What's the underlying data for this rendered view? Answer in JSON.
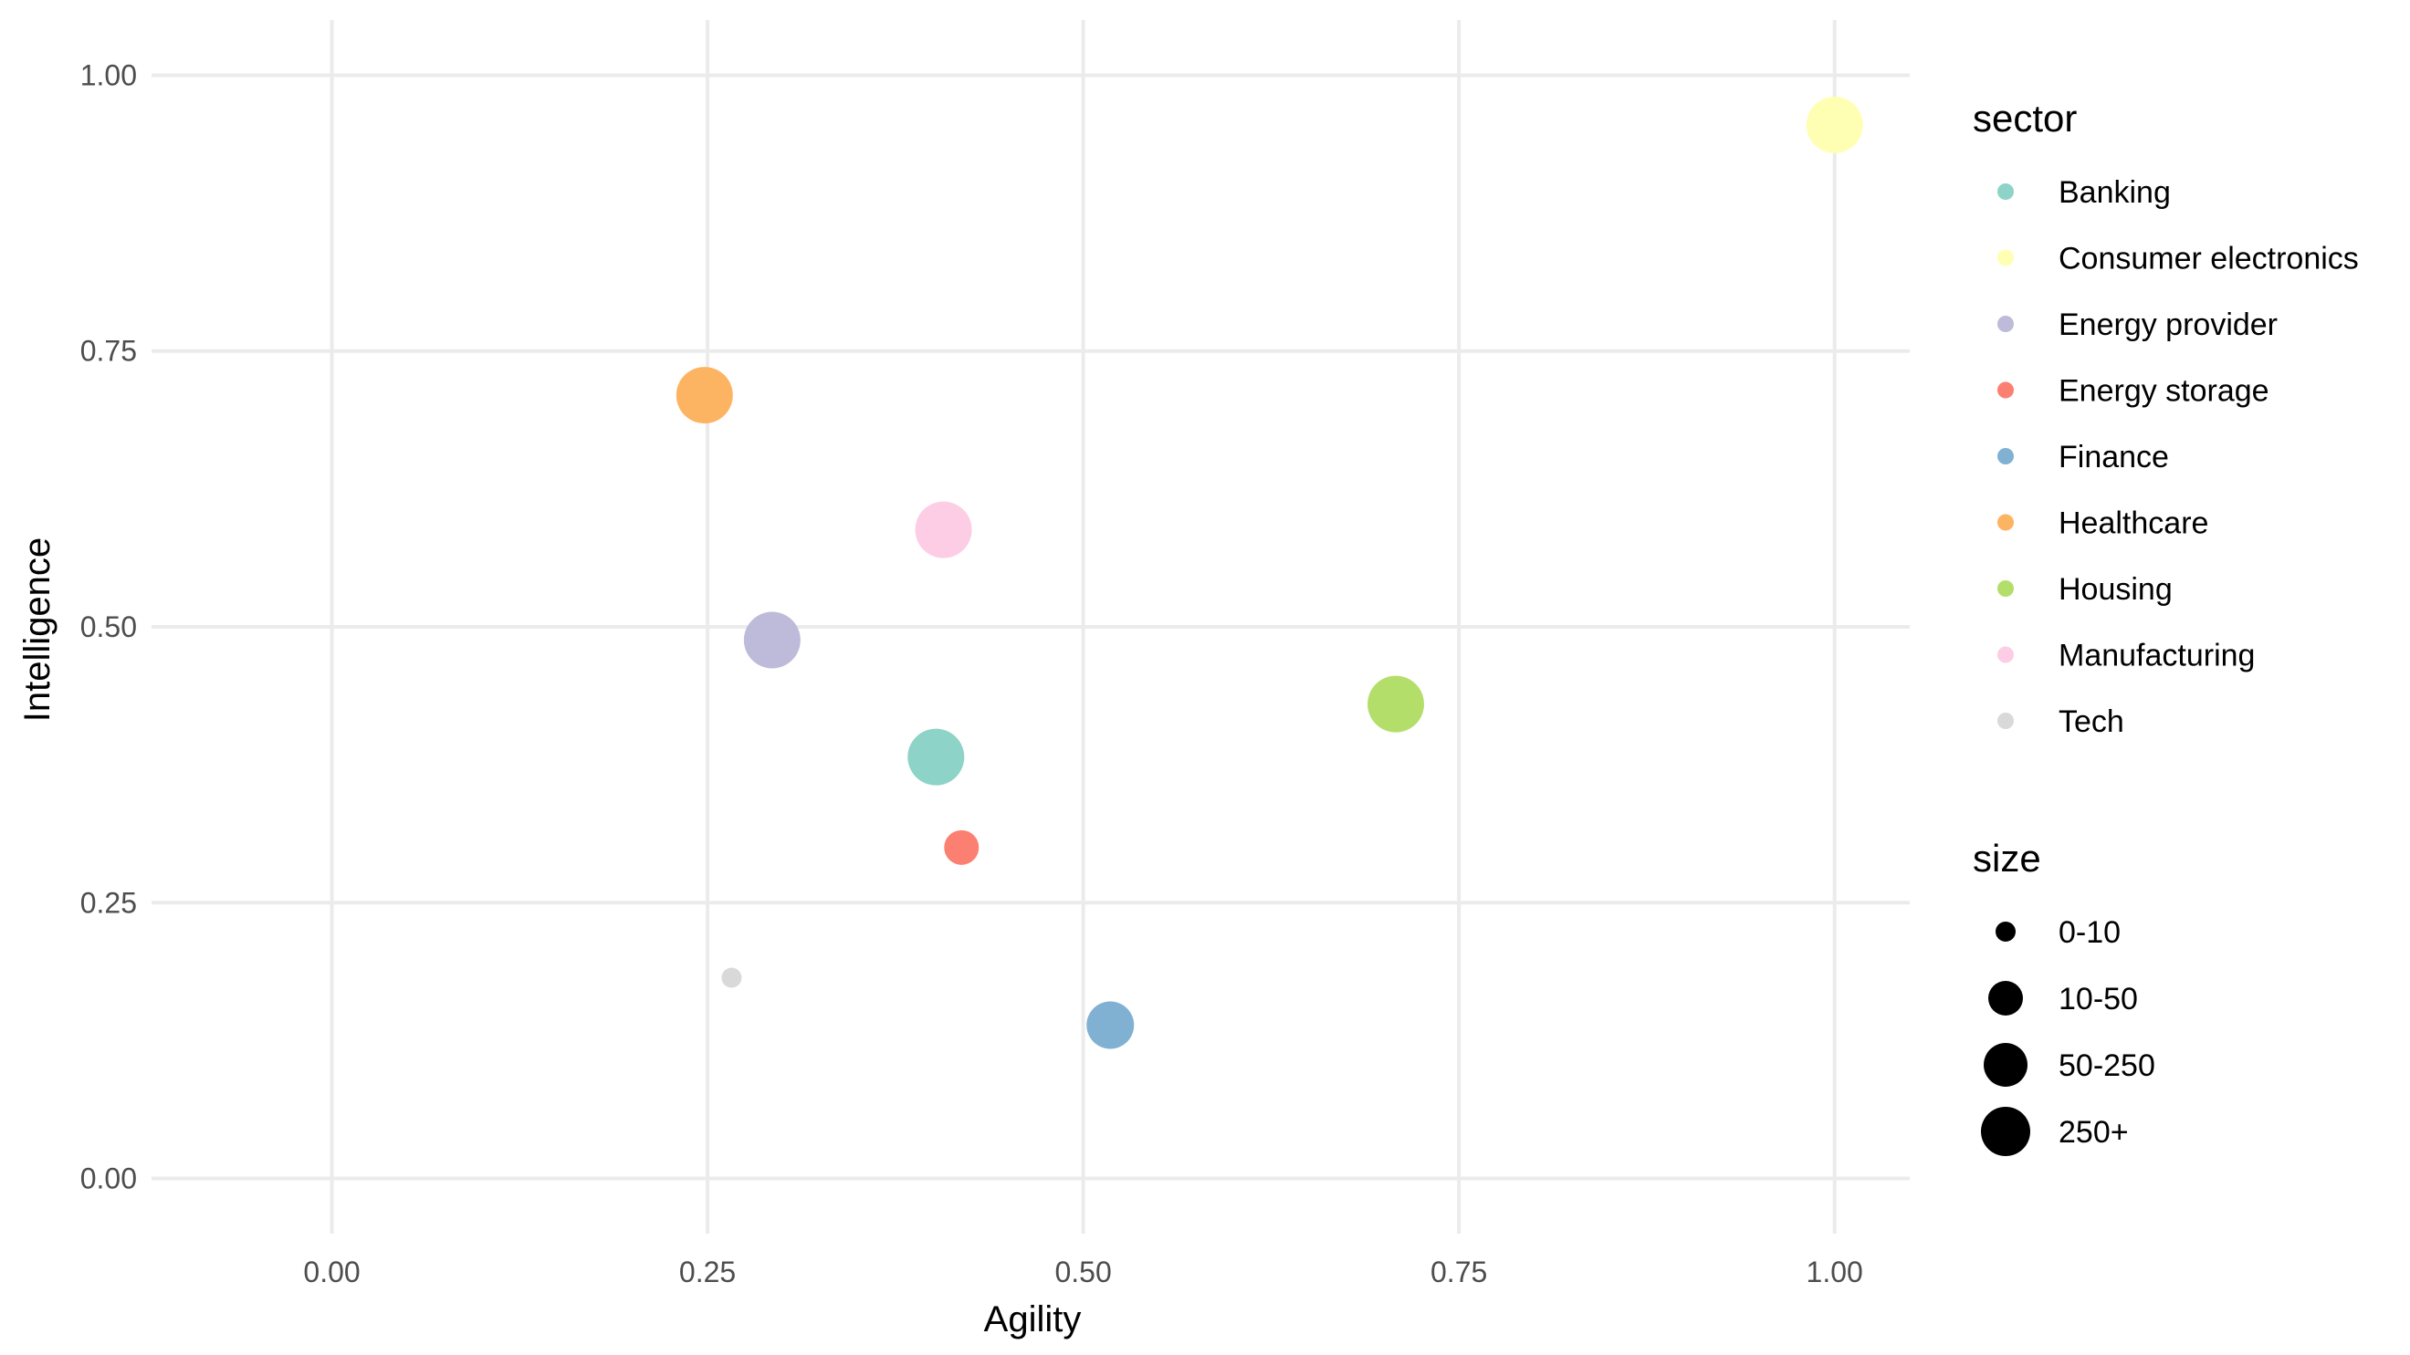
{
  "chart_data": {
    "type": "scatter",
    "title": "",
    "xlabel": "Agility",
    "ylabel": "Intelligence",
    "xlim": [
      -0.12,
      1.05
    ],
    "ylim": [
      -0.05,
      1.05
    ],
    "x_ticks": [
      0.0,
      0.25,
      0.5,
      0.75,
      1.0
    ],
    "y_ticks": [
      0.0,
      0.25,
      0.5,
      0.75,
      1.0
    ],
    "x_tick_labels": [
      "0.00",
      "0.25",
      "0.50",
      "0.75",
      "1.00"
    ],
    "y_tick_labels": [
      "0.00",
      "0.25",
      "0.50",
      "0.75",
      "1.00"
    ],
    "grid": true,
    "legend_position": "right",
    "color_legend_title": "sector",
    "size_legend_title": "size",
    "size_categories": [
      "0-10",
      "10-50",
      "50-250",
      "250+"
    ],
    "points": [
      {
        "sector": "Banking",
        "x": 0.402,
        "y": 0.382,
        "size": "250+"
      },
      {
        "sector": "Consumer electronics",
        "x": 1.0,
        "y": 0.955,
        "size": "250+"
      },
      {
        "sector": "Energy provider",
        "x": 0.293,
        "y": 0.488,
        "size": "250+"
      },
      {
        "sector": "Energy storage",
        "x": 0.419,
        "y": 0.3,
        "size": "10-50"
      },
      {
        "sector": "Finance",
        "x": 0.518,
        "y": 0.139,
        "size": "50-250"
      },
      {
        "sector": "Healthcare",
        "x": 0.248,
        "y": 0.71,
        "size": "250+"
      },
      {
        "sector": "Housing",
        "x": 0.708,
        "y": 0.43,
        "size": "250+"
      },
      {
        "sector": "Manufacturing",
        "x": 0.407,
        "y": 0.588,
        "size": "250+"
      },
      {
        "sector": "Tech",
        "x": 0.266,
        "y": 0.182,
        "size": "0-10"
      }
    ],
    "sectors": [
      {
        "name": "Banking",
        "color": "#8dd3c7"
      },
      {
        "name": "Consumer electronics",
        "color": "#ffffb3"
      },
      {
        "name": "Energy provider",
        "color": "#bebada"
      },
      {
        "name": "Energy storage",
        "color": "#fb8072"
      },
      {
        "name": "Finance",
        "color": "#80b1d3"
      },
      {
        "name": "Healthcare",
        "color": "#fdb462"
      },
      {
        "name": "Housing",
        "color": "#b3de69"
      },
      {
        "name": "Manufacturing",
        "color": "#fccde5"
      },
      {
        "name": "Tech",
        "color": "#d9d9d9"
      }
    ]
  }
}
